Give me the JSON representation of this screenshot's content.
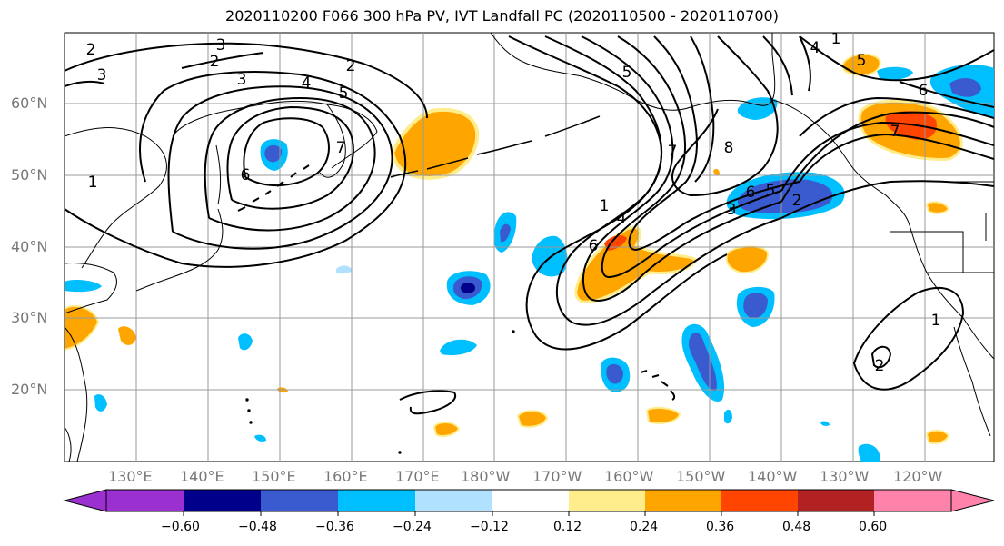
{
  "title": "2020110200 F066 300 hPa PV, IVT Landfall PC (2020110500 - 2020110700)",
  "map": {
    "lat_labels": [
      "60°N",
      "50°N",
      "40°N",
      "30°N",
      "20°N"
    ],
    "lon_labels": [
      "130°E",
      "140°E",
      "150°E",
      "160°E",
      "170°E",
      "180°W",
      "170°W",
      "160°W",
      "150°W",
      "140°W",
      "130°W",
      "120°W"
    ],
    "contour_labels": [
      "2",
      "3",
      "3",
      "2",
      "3",
      "4",
      "5",
      "2",
      "1",
      "6",
      "7",
      "1",
      "4",
      "6",
      "5",
      "8",
      "7",
      "6",
      "5",
      "3",
      "2",
      "4",
      "5",
      "6",
      "7",
      "1",
      "2",
      "1"
    ]
  },
  "colorbar": {
    "tick_labels": [
      "−0.60",
      "−0.48",
      "−0.36",
      "−0.24",
      "−0.12",
      "0.12",
      "0.24",
      "0.36",
      "0.48",
      "0.60"
    ],
    "colors": [
      "#9b30d0",
      "#00008b",
      "#3a5bd0",
      "#00bfff",
      "#b0e2ff",
      "#ffffff",
      "#ffec8b",
      "#ffa500",
      "#ff4500",
      "#b22222",
      "#ff82ab"
    ]
  }
}
